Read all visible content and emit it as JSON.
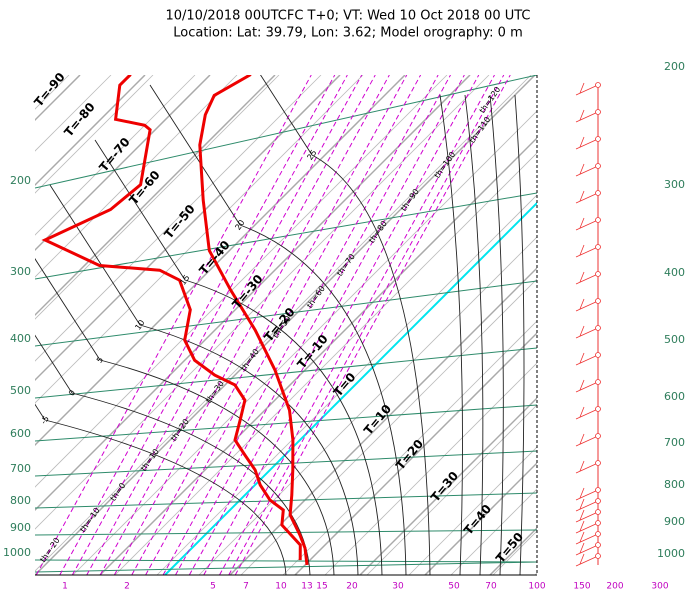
{
  "header": {
    "title": "10/10/2018 00UTCFC T+0; VT: Wed 10 Oct 2018 00 UTC",
    "subtitle": "Location: Lat: 39.79, Lon: 3.62; Model orography: 0 m"
  },
  "left_axis_labels": [
    "200",
    "300",
    "400",
    "500",
    "600",
    "700",
    "800",
    "900",
    "1000"
  ],
  "right_axis_labels": [
    "200",
    "300",
    "400",
    "500",
    "600",
    "700",
    "800",
    "900",
    "1000"
  ],
  "bottom_axis_labels": [
    "1",
    "2",
    "5",
    "7",
    "10",
    "13",
    "15",
    "20",
    "30",
    "50",
    "70",
    "100",
    "150",
    "200",
    "300"
  ],
  "isotherm_labels": [
    "T=-90",
    "T=-80",
    "T=-70",
    "T=-60",
    "T=-50",
    "T=-40",
    "T=-30",
    "T=-20",
    "T=-10",
    "T=0",
    "T=10",
    "T=20",
    "T=30",
    "T=40",
    "T=50"
  ],
  "theta_labels": [
    "th=120",
    "th=110",
    "th=100",
    "th=90",
    "th=80",
    "th=70",
    "th=60",
    "th=50",
    "th=40",
    "th=30",
    "th=20",
    "th=10",
    "th=0",
    "th=-10",
    "th=-20"
  ],
  "moist_adiabat_labels": [
    "25",
    "20",
    "15",
    "10",
    "5",
    "0",
    "-5"
  ],
  "temperature_profile": {
    "pressure": [
      1053,
      979,
      925,
      848,
      778,
      698,
      613,
      539,
      453,
      381,
      320,
      270,
      217,
      171,
      150,
      138,
      126
    ],
    "values": [
      20.3,
      17.4,
      14.6,
      10.0,
      7.2,
      3.5,
      -1.1,
      -6.2,
      -14.6,
      -23.8,
      -33.8,
      -43.1,
      -51.8,
      -60.8,
      -64.6,
      -66.2,
      -63.8
    ]
  },
  "dewpoint_profile": {
    "pressure": [
      1031,
      966,
      886,
      830,
      795,
      745,
      698,
      654,
      613,
      562,
      516,
      483,
      463,
      434,
      398,
      349,
      307,
      294,
      288,
      258,
      226,
      203,
      160,
      157,
      153,
      132,
      126
    ],
    "values": [
      18.5,
      16.2,
      10.3,
      8.2,
      4.6,
      0.8,
      -2.3,
      -6.2,
      -10.0,
      -12.3,
      -14.6,
      -18.5,
      -23.1,
      -28.5,
      -33.1,
      -36.9,
      -43.1,
      -47.7,
      -57.7,
      -70.0,
      -64.6,
      -63.8,
      -70.8,
      -72.3,
      -77.7,
      -82.3,
      -82.3
    ]
  }
}
